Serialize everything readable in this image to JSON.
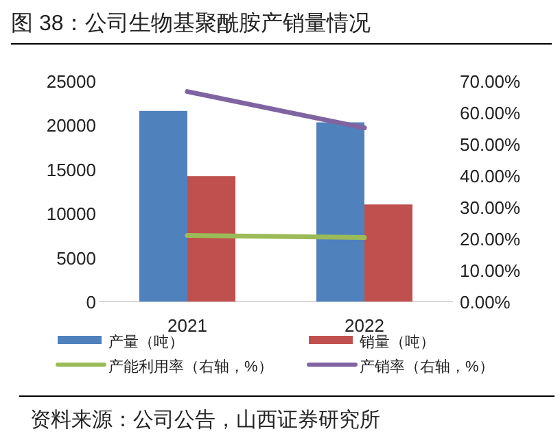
{
  "chart_data": {
    "type": "bar",
    "title": "图 38：公司生物基聚酰胺产销量情况",
    "annotations": [
      "资料来源：公司公告，山西证券研究所"
    ],
    "categories": [
      "2021",
      "2022"
    ],
    "series": [
      {
        "name": "产量（吨）",
        "color": "#4f81bd",
        "values": [
          21600,
          20300
        ]
      },
      {
        "name": "销量（吨）",
        "color": "#c0504d",
        "values": [
          14200,
          11000
        ]
      },
      {
        "name": "产能利用率（右轴，%）",
        "color": "#9bbb59",
        "type": "line",
        "axis": "y2",
        "values": [
          21.0,
          20.3
        ]
      },
      {
        "name": "产销率（右轴，%）",
        "color": "#8064a2",
        "type": "line",
        "axis": "y2",
        "values": [
          66.6,
          55.1
        ]
      }
    ],
    "ylim": [
      0,
      25000
    ],
    "yticks": [
      0,
      5000,
      10000,
      15000,
      20000,
      25000
    ],
    "y2lim": [
      0,
      70
    ],
    "y2ticks": [
      {
        "value": 0,
        "label": "0.00%"
      },
      {
        "value": 10,
        "label": "10.00%"
      },
      {
        "value": 20,
        "label": "20.00%"
      },
      {
        "value": 30,
        "label": "30.00%"
      },
      {
        "value": 40,
        "label": "40.00%"
      },
      {
        "value": 50,
        "label": "50.00%"
      },
      {
        "value": 60,
        "label": "60.00%"
      },
      {
        "value": 70,
        "label": "70.00%"
      }
    ],
    "grid": false,
    "legend": "bottom",
    "marker": "none"
  }
}
